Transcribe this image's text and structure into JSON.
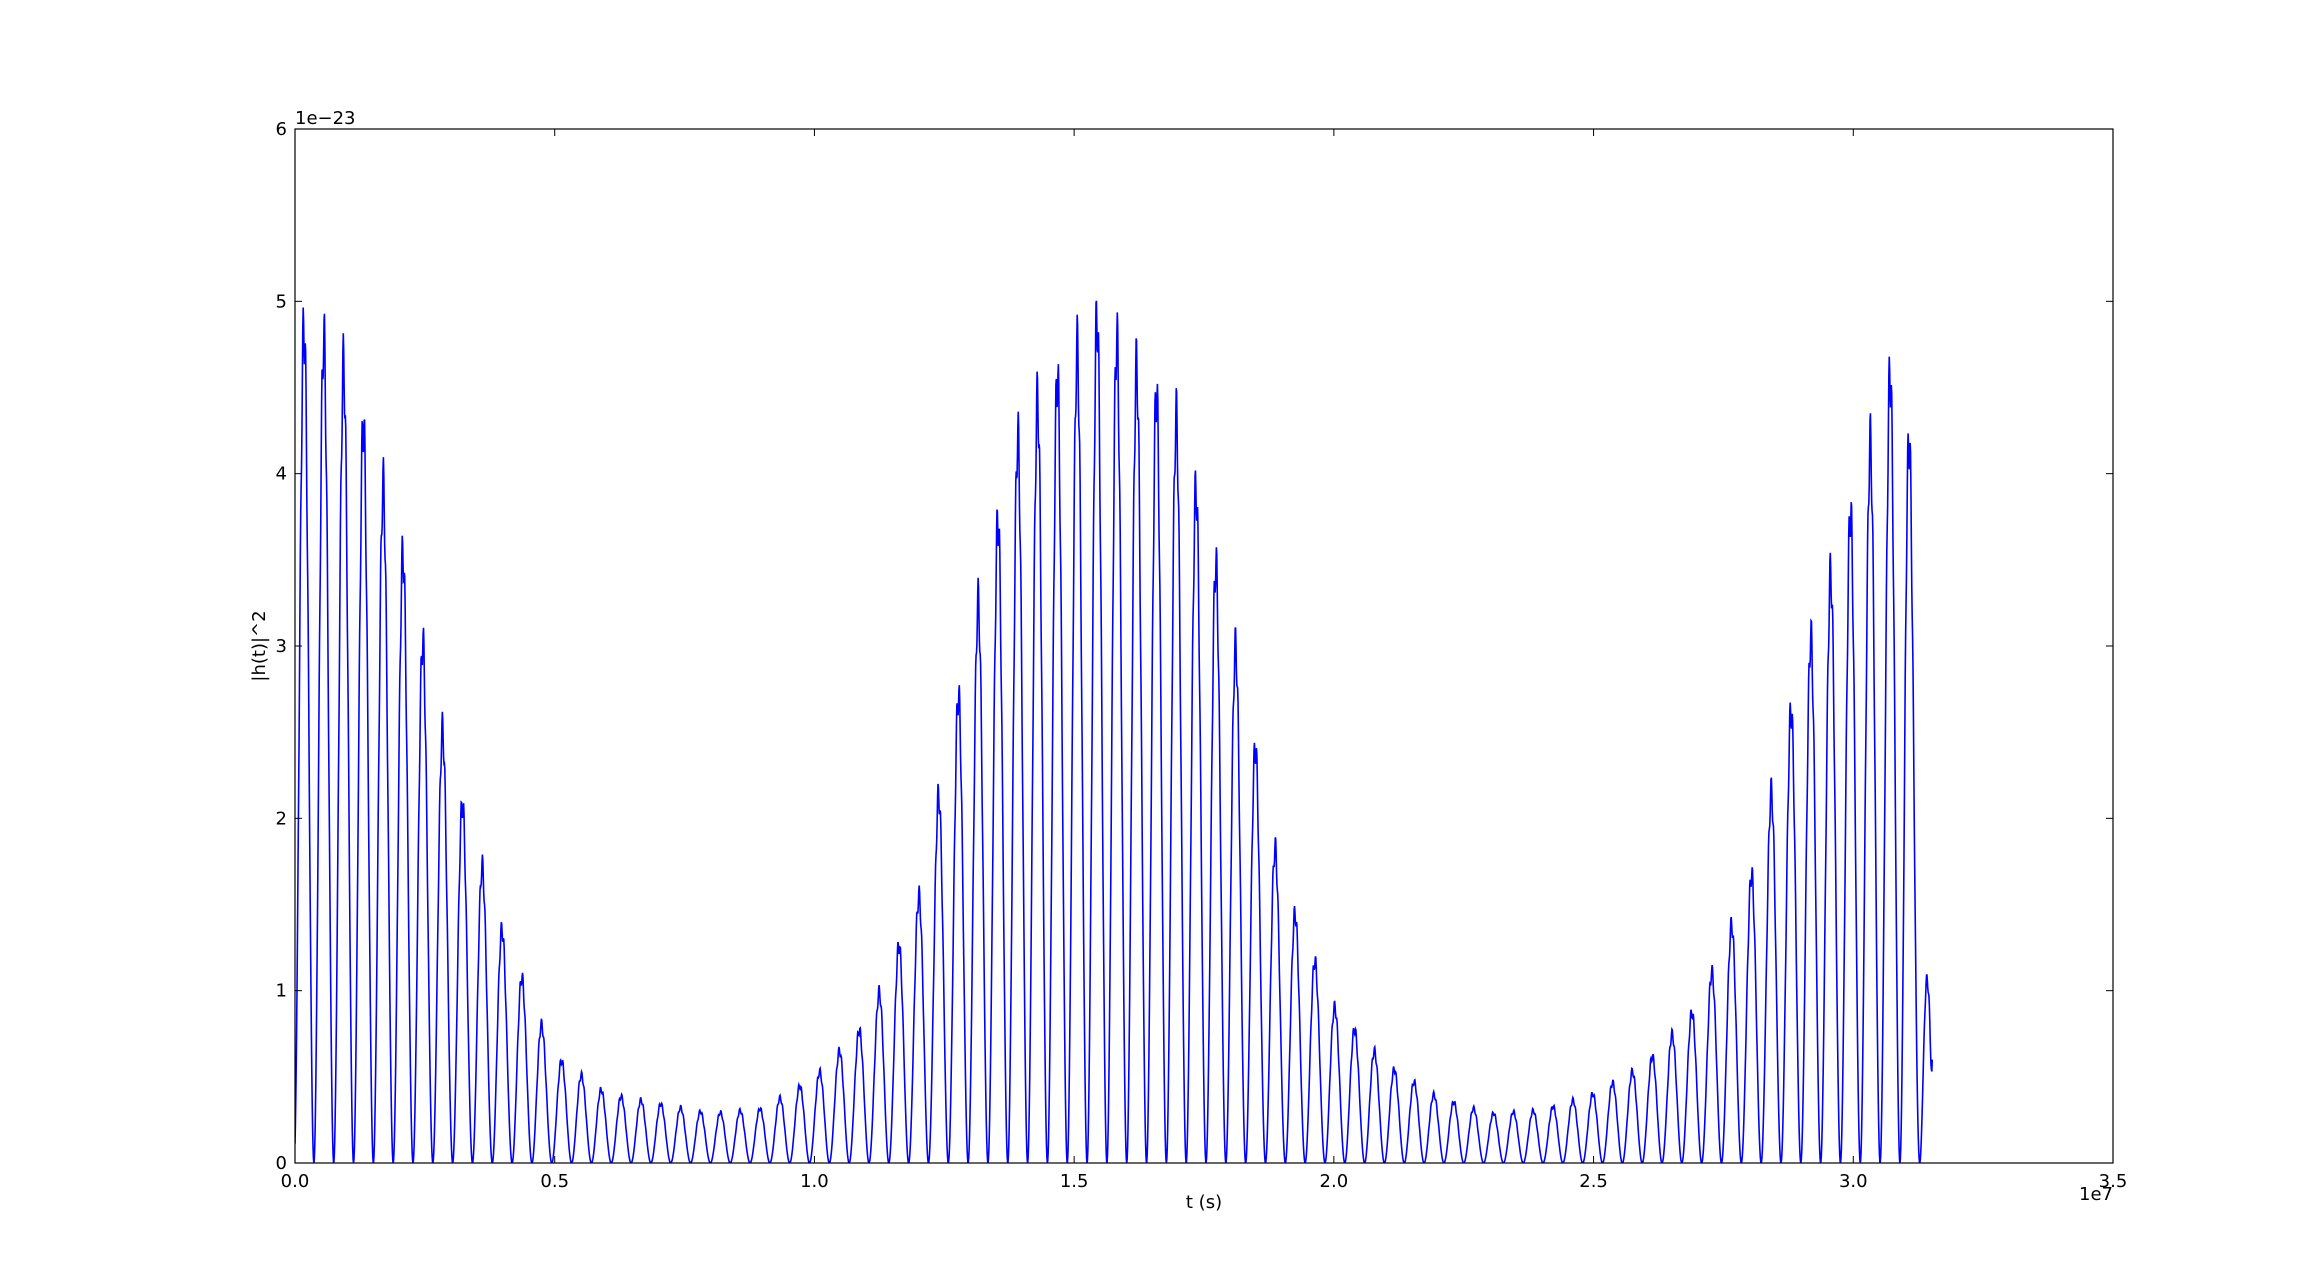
{
  "chart_data": {
    "type": "line",
    "title": "",
    "xlabel": "t (s)",
    "ylabel": "|h(t)|^2",
    "x_multiplier": "1e7",
    "y_multiplier": "1e−23",
    "xlim": [
      0.0,
      3.5
    ],
    "ylim": [
      0,
      6
    ],
    "x_ticks": [
      "0.0",
      "0.5",
      "1.0",
      "1.5",
      "2.0",
      "2.5",
      "3.0",
      "3.5"
    ],
    "y_ticks": [
      "0",
      "1",
      "2",
      "3",
      "4",
      "5",
      "6"
    ],
    "x_tick_values": [
      0.0,
      0.5,
      1.0,
      1.5,
      2.0,
      2.5,
      3.0,
      3.5
    ],
    "y_tick_values": [
      0,
      1,
      2,
      3,
      4,
      5,
      6
    ],
    "grid": false,
    "legend": "none",
    "line_color": "#0000ff",
    "series": [
      {
        "x": [
          0.0,
          0.5,
          1.0,
          1.5,
          2.0,
          2.5,
          3.0,
          3.15
        ],
        "envelope_x": [
          0.0,
          0.03,
          0.1,
          0.2,
          0.3,
          0.4,
          0.5,
          0.6,
          0.7,
          0.8,
          0.9,
          1.0,
          1.1,
          1.2,
          1.3,
          1.4,
          1.5,
          1.55,
          1.6,
          1.7,
          1.8,
          1.9,
          2.0,
          2.1,
          2.2,
          2.3,
          2.4,
          2.5,
          2.6,
          2.7,
          2.8,
          2.9,
          3.0,
          3.1,
          3.15
        ],
        "envelope_y": [
          5.0,
          5.1,
          4.8,
          3.8,
          2.4,
          1.4,
          0.65,
          0.42,
          0.36,
          0.3,
          0.33,
          0.52,
          0.85,
          1.6,
          3.2,
          4.5,
          4.9,
          5.15,
          4.9,
          4.5,
          3.3,
          1.7,
          0.95,
          0.6,
          0.4,
          0.3,
          0.32,
          0.42,
          0.6,
          0.95,
          1.7,
          3.0,
          4.0,
          5.1,
          0.6
        ],
        "oscillation_cycles_per_1e7_s": 26.2
      }
    ]
  }
}
